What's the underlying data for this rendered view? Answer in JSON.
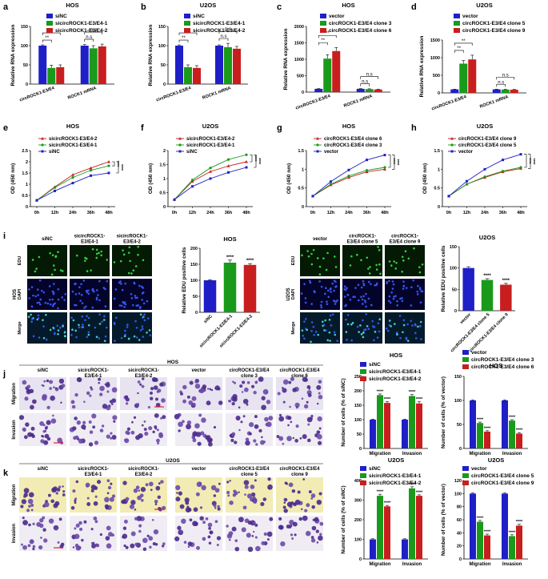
{
  "colors": {
    "blue": "#1f1fc8",
    "green": "#1a9a1a",
    "red": "#c81e1e",
    "black": "#000000"
  },
  "chart_data": [
    {
      "id": "a",
      "type": "bar",
      "title": "HOS",
      "ylabel": "Relative RNA expression",
      "ylim": [
        0,
        150
      ],
      "yticks": [
        0,
        50,
        100,
        150
      ],
      "categories": [
        "circROCK1-E3/E4",
        "ROCK1 mRNA"
      ],
      "series": [
        {
          "name": "siNC",
          "values": [
            100,
            100
          ],
          "errors": [
            2,
            3
          ]
        },
        {
          "name": "sicircROCK1-E3/E4-1",
          "values": [
            42,
            93
          ],
          "errors": [
            7,
            7
          ]
        },
        {
          "name": "sicircROCK1-E3/E4-2",
          "values": [
            44,
            98
          ],
          "errors": [
            6,
            6
          ]
        }
      ],
      "sig": [
        {
          "text": "**",
          "cat": 0,
          "from": 0,
          "to": 2,
          "level": 1
        },
        {
          "text": "**",
          "cat": 0,
          "from": 0,
          "to": 1,
          "level": 0
        },
        {
          "text": "n.s",
          "cat": 1,
          "from": 0,
          "to": 2,
          "level": 1
        },
        {
          "text": "n.s",
          "cat": 1,
          "from": 0,
          "to": 1,
          "level": 0
        }
      ]
    },
    {
      "id": "b",
      "type": "bar",
      "title": "U2OS",
      "ylabel": "Relative RNA expression",
      "ylim": [
        0,
        150
      ],
      "yticks": [
        0,
        50,
        100,
        150
      ],
      "categories": [
        "circROCK1-E3/E4",
        "ROCK1 mRNA"
      ],
      "series": [
        {
          "name": "siNC",
          "values": [
            100,
            100
          ],
          "errors": [
            2,
            2
          ]
        },
        {
          "name": "sicircROCK1-E3/E4-1",
          "values": [
            44,
            96
          ],
          "errors": [
            6,
            10
          ]
        },
        {
          "name": "sicircROCK1-E3/E4-2",
          "values": [
            42,
            92
          ],
          "errors": [
            6,
            6
          ]
        }
      ],
      "sig": [
        {
          "text": "**",
          "cat": 0,
          "from": 0,
          "to": 2,
          "level": 1
        },
        {
          "text": "**",
          "cat": 0,
          "from": 0,
          "to": 1,
          "level": 0
        },
        {
          "text": "n.s",
          "cat": 1,
          "from": 0,
          "to": 2,
          "level": 1
        },
        {
          "text": "n.s",
          "cat": 1,
          "from": 0,
          "to": 1,
          "level": 0
        }
      ]
    },
    {
      "id": "c",
      "type": "bar",
      "title": "HOS",
      "ylabel": "Relative RNA expression",
      "ylim": [
        0,
        2000
      ],
      "yticks": [
        0,
        500,
        1000,
        1500,
        2000
      ],
      "categories": [
        "circROCK1-E3/E4",
        "ROCK1 mRNA"
      ],
      "series": [
        {
          "name": "vector",
          "values": [
            100,
            100
          ],
          "errors": [
            5,
            5
          ]
        },
        {
          "name": "circROCK1-E3/E4 clone 3",
          "values": [
            1020,
            90
          ],
          "errors": [
            120,
            10
          ]
        },
        {
          "name": "circROCK1-E3/E4 clone 6",
          "values": [
            1250,
            80
          ],
          "errors": [
            110,
            10
          ]
        }
      ],
      "sig": [
        {
          "text": "**",
          "cat": 0,
          "from": 0,
          "to": 2,
          "level": 1
        },
        {
          "text": "**",
          "cat": 0,
          "from": 0,
          "to": 1,
          "level": 0
        },
        {
          "text": "n.s",
          "cat": 1,
          "from": 0,
          "to": 2,
          "level": 1
        },
        {
          "text": "n.s",
          "cat": 1,
          "from": 0,
          "to": 1,
          "level": 0
        }
      ]
    },
    {
      "id": "d",
      "type": "bar",
      "title": "U2OS",
      "ylabel": "Relative RNA expression",
      "ylim": [
        0,
        1500
      ],
      "yticks": [
        0,
        500,
        1000,
        1500
      ],
      "categories": [
        "circROCK1-E3/E4",
        "ROCK1 mRNA"
      ],
      "series": [
        {
          "name": "vector",
          "values": [
            100,
            100
          ],
          "errors": [
            5,
            5
          ]
        },
        {
          "name": "circROCK1-E3/E4 clone 5",
          "values": [
            830,
            95
          ],
          "errors": [
            90,
            8
          ]
        },
        {
          "name": "circROCK1-E3/E4 clone 9",
          "values": [
            950,
            90
          ],
          "errors": [
            120,
            8
          ]
        }
      ],
      "sig": [
        {
          "text": "**",
          "cat": 0,
          "from": 0,
          "to": 2,
          "level": 1
        },
        {
          "text": "**",
          "cat": 0,
          "from": 0,
          "to": 1,
          "level": 0
        },
        {
          "text": "n.s",
          "cat": 1,
          "from": 0,
          "to": 2,
          "level": 1
        },
        {
          "text": "n.s",
          "cat": 1,
          "from": 0,
          "to": 1,
          "level": 0
        }
      ]
    },
    {
      "id": "e",
      "type": "line",
      "title": "HOS",
      "ylabel": "OD (450 nm)",
      "ylim": [
        0,
        2.5
      ],
      "yticks": [
        0,
        0.5,
        1,
        1.5,
        2,
        2.5
      ],
      "x": [
        "0h",
        "12h",
        "24h",
        "36h",
        "48h"
      ],
      "series": [
        {
          "name": "sicircROCK1-E3/E4-2",
          "color": "red",
          "marker": "tri",
          "values": [
            0.28,
            0.88,
            1.42,
            1.72,
            2.0
          ]
        },
        {
          "name": "sicircROCK1-E3/E4-1",
          "color": "green",
          "marker": "circ",
          "values": [
            0.28,
            0.85,
            1.3,
            1.62,
            1.82
          ]
        },
        {
          "name": "siNC",
          "color": "blue",
          "marker": "sq",
          "values": [
            0.28,
            0.7,
            1.05,
            1.38,
            1.5
          ]
        }
      ],
      "sig": [
        "****",
        "****"
      ]
    },
    {
      "id": "f",
      "type": "line",
      "title": "U2OS",
      "ylabel": "OD (450 nm)",
      "ylim": [
        0,
        2.0
      ],
      "yticks": [
        0,
        0.5,
        1,
        1.5,
        2
      ],
      "x": [
        "0h",
        "12h",
        "24h",
        "36h",
        "48h"
      ],
      "series": [
        {
          "name": "sicircROCK1-E3/E4-2",
          "color": "red",
          "marker": "tri",
          "values": [
            0.25,
            0.9,
            1.25,
            1.45,
            1.6
          ]
        },
        {
          "name": "sicircROCK1-E3/E4-1",
          "color": "green",
          "marker": "circ",
          "values": [
            0.25,
            0.95,
            1.38,
            1.68,
            1.85
          ]
        },
        {
          "name": "siNC",
          "color": "blue",
          "marker": "sq",
          "values": [
            0.25,
            0.72,
            1.0,
            1.22,
            1.4
          ]
        }
      ],
      "sig": [
        "****",
        "****"
      ]
    },
    {
      "id": "g",
      "type": "line",
      "title": "HOS",
      "ylabel": "OD (450 nm)",
      "ylim": [
        0,
        1.5
      ],
      "yticks": [
        0,
        0.5,
        1,
        1.5
      ],
      "x": [
        "0h",
        "12h",
        "24h",
        "36h",
        "48h"
      ],
      "series": [
        {
          "name": "circROCK1-E3/E4 clone 6",
          "color": "red",
          "marker": "tri",
          "values": [
            0.28,
            0.58,
            0.78,
            0.93,
            1.0
          ]
        },
        {
          "name": "circROCK1-E3/E4 clone 3",
          "color": "green",
          "marker": "circ",
          "values": [
            0.28,
            0.6,
            0.82,
            0.97,
            1.05
          ]
        },
        {
          "name": "vector",
          "color": "blue",
          "marker": "sq",
          "values": [
            0.28,
            0.67,
            0.98,
            1.25,
            1.38
          ]
        }
      ],
      "sig": [
        "****",
        "****"
      ]
    },
    {
      "id": "h",
      "type": "line",
      "title": "U2OS",
      "ylabel": "OD (450 nm)",
      "ylim": [
        0,
        1.5
      ],
      "yticks": [
        0,
        0.5,
        1,
        1.5
      ],
      "x": [
        "0h",
        "12h",
        "24h",
        "36h",
        "48h"
      ],
      "series": [
        {
          "name": "circROCK1-E3/E4 clone 9",
          "color": "red",
          "marker": "tri",
          "values": [
            0.28,
            0.6,
            0.78,
            0.93,
            1.02
          ]
        },
        {
          "name": "circROCK1-E3/E4 clone 5",
          "color": "green",
          "marker": "circ",
          "values": [
            0.28,
            0.6,
            0.8,
            0.95,
            1.05
          ]
        },
        {
          "name": "vector",
          "color": "blue",
          "marker": "sq",
          "values": [
            0.28,
            0.68,
            1.0,
            1.25,
            1.4
          ]
        }
      ],
      "sig": [
        "****",
        "****"
      ]
    },
    {
      "id": "i1",
      "type": "bar",
      "title": "HOS",
      "ylabel": "Relative EDU positive cells",
      "ylim": [
        0,
        200
      ],
      "yticks": [
        0,
        50,
        100,
        150,
        200
      ],
      "categories": [
        "siNC",
        "sicircROCK1-E3/E4-1",
        "sicircROCK1-E3/E4-2"
      ],
      "values": [
        100,
        155,
        148
      ],
      "errors": [
        2,
        8,
        4
      ],
      "colors": [
        "blue",
        "green",
        "red"
      ],
      "sig": [
        "",
        "****",
        "****"
      ]
    },
    {
      "id": "i2",
      "type": "bar",
      "title": "U2OS",
      "ylabel": "Relative EDU positive cells",
      "ylim": [
        0,
        150
      ],
      "yticks": [
        0,
        50,
        100,
        150
      ],
      "categories": [
        "vector",
        "circROCK1-E3/E4 clone 5",
        "circROCK1-E3/E4 clone 9"
      ],
      "values": [
        100,
        72,
        61
      ],
      "errors": [
        3,
        3,
        3
      ],
      "colors": [
        "blue",
        "green",
        "red"
      ],
      "sig": [
        "",
        "****",
        "****"
      ]
    },
    {
      "id": "j1",
      "type": "bar",
      "title": "HOS",
      "ylabel": "Number of cells (% of siNC)",
      "ylim": [
        0,
        250
      ],
      "yticks": [
        0,
        50,
        100,
        150,
        200,
        250
      ],
      "categories": [
        "Migration",
        "Invasion"
      ],
      "series": [
        {
          "name": "siNC",
          "values": [
            100,
            100
          ],
          "errors": [
            2,
            2
          ]
        },
        {
          "name": "sicircROCK1-E3/E4-1",
          "values": [
            185,
            182
          ],
          "errors": [
            4,
            5
          ]
        },
        {
          "name": "sicircROCK1-E3/E4-2",
          "values": [
            158,
            156
          ],
          "errors": [
            4,
            6
          ]
        }
      ],
      "sig": [
        "****",
        "****"
      ]
    },
    {
      "id": "j2",
      "type": "bar",
      "title": "HOS",
      "ylabel": "Number of cells (% of vector)",
      "ylim": [
        0,
        150
      ],
      "yticks": [
        0,
        50,
        100,
        150
      ],
      "categories": [
        "Migration",
        "Invasion"
      ],
      "series": [
        {
          "name": "vector",
          "values": [
            100,
            100
          ],
          "errors": [
            1,
            1
          ]
        },
        {
          "name": "circROCK1-E3/E4 clone 3",
          "values": [
            53,
            58
          ],
          "errors": [
            2,
            2
          ]
        },
        {
          "name": "circROCK1-E3/E4 clone 6",
          "values": [
            35,
            31
          ],
          "errors": [
            2,
            2
          ]
        }
      ],
      "sig": [
        "****",
        "****"
      ]
    },
    {
      "id": "k1",
      "type": "bar",
      "title": "U2OS",
      "ylabel": "Number of cells (% of siNC)",
      "ylim": [
        0,
        400
      ],
      "yticks": [
        0,
        100,
        200,
        300,
        400
      ],
      "categories": [
        "Migration",
        "Invasion"
      ],
      "series": [
        {
          "name": "siNC",
          "values": [
            100,
            100
          ],
          "errors": [
            3,
            3
          ]
        },
        {
          "name": "sicircROCK1-E3/E4-1",
          "values": [
            322,
            360
          ],
          "errors": [
            8,
            8
          ]
        },
        {
          "name": "sicircROCK1-E3/E4-2",
          "values": [
            268,
            322
          ],
          "errors": [
            5,
            5
          ]
        }
      ],
      "sig": [
        "****",
        "****"
      ]
    },
    {
      "id": "k2",
      "type": "bar",
      "title": "U2OS",
      "ylabel": "Number of cells (% of vector)",
      "ylim": [
        0,
        120
      ],
      "yticks": [
        0,
        20,
        40,
        60,
        80,
        100,
        120
      ],
      "categories": [
        "Migration",
        "Invasion"
      ],
      "series": [
        {
          "name": "vector",
          "values": [
            100,
            100
          ],
          "errors": [
            1,
            1
          ]
        },
        {
          "name": "circROCK1-E3/E4 clone 5",
          "values": [
            57,
            35
          ],
          "errors": [
            2,
            2
          ]
        },
        {
          "name": "circROCK1-E3/E4 clone 9",
          "values": [
            36,
            51
          ],
          "errors": [
            2,
            2
          ]
        }
      ],
      "sig": [
        "****",
        "****"
      ]
    }
  ],
  "panel_letters": [
    "a",
    "b",
    "c",
    "d",
    "e",
    "f",
    "g",
    "h",
    "i",
    "j",
    "k"
  ],
  "micro_i_hos": {
    "cols": [
      "siNC",
      "sicircROCK1-\nE3/E4-1",
      "sicircROCK1-\nE3/E4-2"
    ],
    "rows": [
      "EDU",
      "DAPI",
      "Merge"
    ],
    "side": "HOS"
  },
  "micro_i_u2os": {
    "cols": [
      "vector",
      "circROCK1-\nE3/E4 clone 5",
      "circROCK1-\nE3/E4 clone 9"
    ],
    "rows": [
      "EDU",
      "DAPI",
      "Merge"
    ],
    "side": "U2OS"
  },
  "micro_j": {
    "title": "HOS",
    "cols": [
      "siNC",
      "sicircROCK1-\nE3/E4-1",
      "sicircROCK1-\nE3/E4-2",
      "vector",
      "circROCK1-E3/E4\nclone 3",
      "circROCK1-E3/E4\nclone 6"
    ],
    "rows": [
      "Migration",
      "Invasion"
    ]
  },
  "micro_k": {
    "title": "U2OS",
    "cols": [
      "siNC",
      "sicircROCK1-\nE3/E4-1",
      "sicircROCK1-\nE3/E4-2",
      "vector",
      "circROCK1-E3/E4\nclone 5",
      "circROCK1-E3/E4\nclone 9"
    ],
    "rows": [
      "Migration",
      "Invasion"
    ]
  }
}
